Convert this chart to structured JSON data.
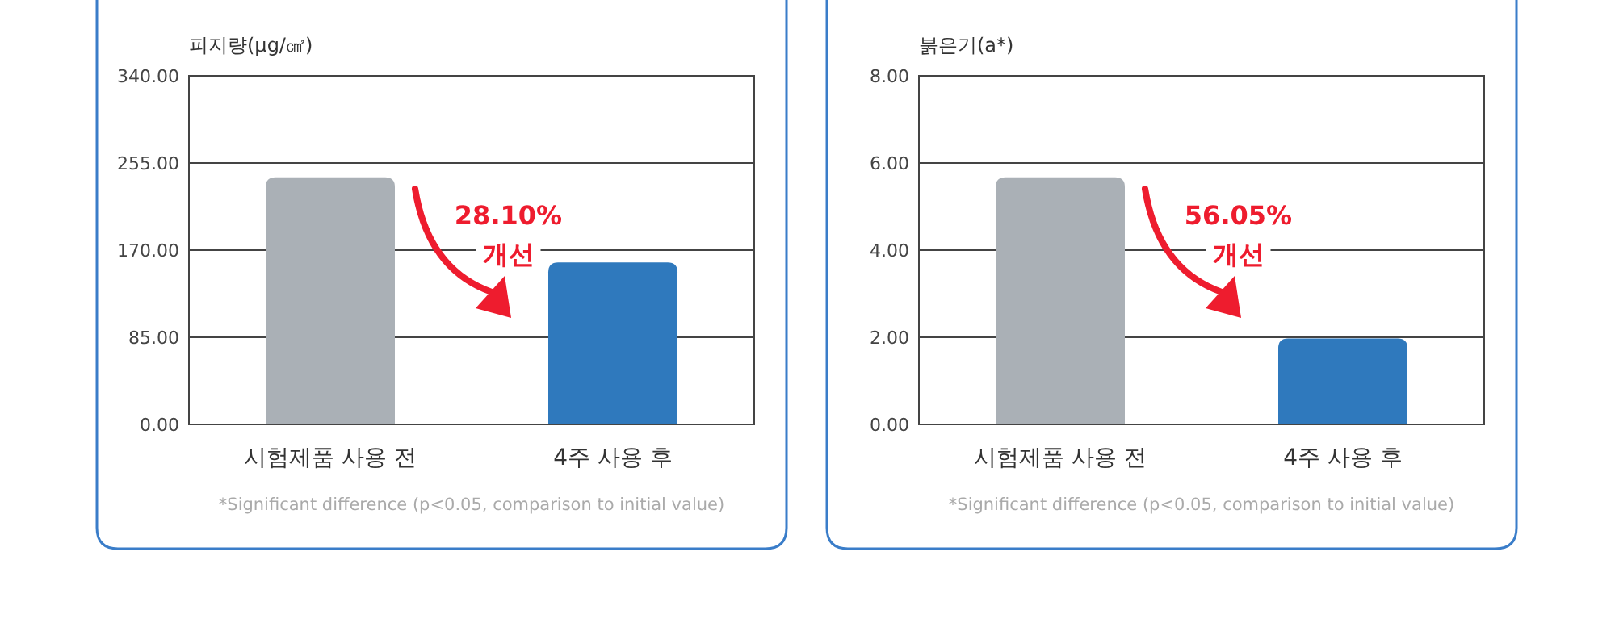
{
  "chart_data": [
    {
      "type": "bar",
      "ylabel": "피지량(μg/㎠)",
      "categories": [
        "시험제품 사용 전",
        "4주 사용 후"
      ],
      "values": [
        241,
        158
      ],
      "colors": [
        "#aab0b6",
        "#2f79bd"
      ],
      "ylim": [
        0,
        340
      ],
      "yticks": [
        {
          "value": 0,
          "label": "0.00"
        },
        {
          "value": 85,
          "label": "85.00"
        },
        {
          "value": 170,
          "label": "170.00"
        },
        {
          "value": 255,
          "label": "255.00"
        },
        {
          "value": 340,
          "label": "340.00"
        }
      ],
      "grid": "y",
      "annotations": [
        "28.10%",
        "개선",
        "*Significant difference (p<0.05, comparison to initial value)"
      ]
    },
    {
      "type": "bar",
      "ylabel": "붉은기(a*)",
      "categories": [
        "시험제품 사용 전",
        "4주 사용 후"
      ],
      "values": [
        5.67,
        1.97
      ],
      "colors": [
        "#aab0b6",
        "#2f79bd"
      ],
      "ylim": [
        0,
        8
      ],
      "yticks": [
        {
          "value": 0,
          "label": "0.00"
        },
        {
          "value": 2,
          "label": "2.00"
        },
        {
          "value": 4,
          "label": "4.00"
        },
        {
          "value": 6,
          "label": "6.00"
        },
        {
          "value": 8,
          "label": "8.00"
        }
      ],
      "grid": "y",
      "annotations": [
        "56.05%",
        "개선",
        "*Significant difference (p<0.05, comparison to initial value)"
      ]
    }
  ]
}
